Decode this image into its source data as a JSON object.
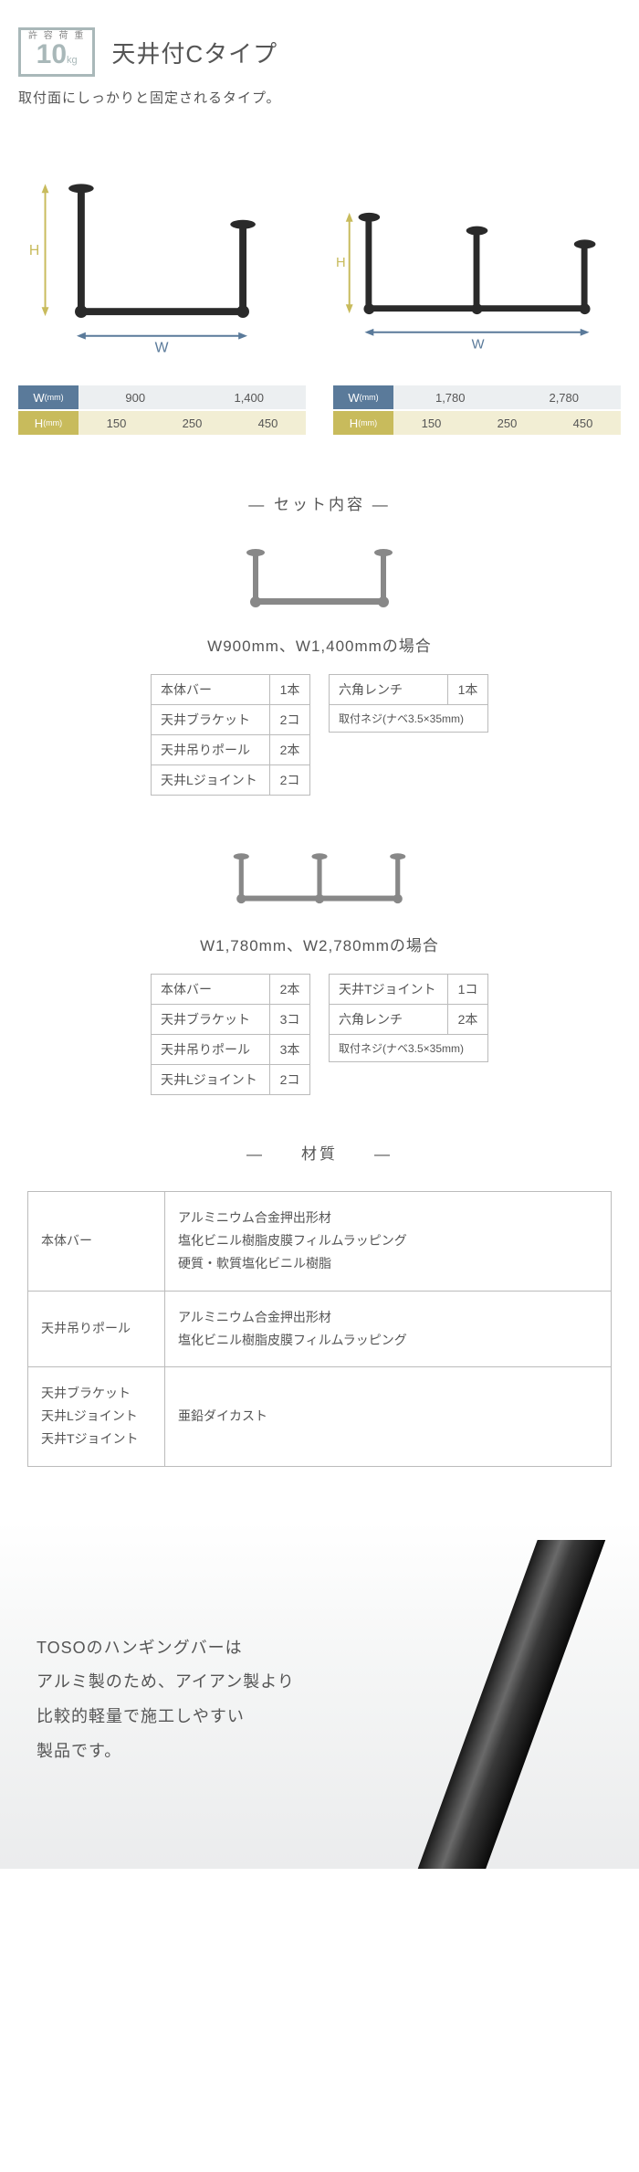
{
  "header": {
    "weight_label": "許 容 荷 重",
    "weight_num": "10",
    "weight_unit": "kg",
    "title": "天井付Cタイプ",
    "subtitle": "取付面にしっかりと固定されるタイプ。"
  },
  "colors": {
    "w_label_bg": "#5a7a9a",
    "h_label_bg": "#c8bb5c",
    "w_cell_bg": "#eceff1",
    "h_cell_bg": "#f2eed4",
    "border": "#bbbbbb",
    "text": "#555555",
    "badge_border": "#a9b8b9",
    "h_arrow": "#c8bb5c",
    "w_arrow": "#5a7a9a",
    "bar_color": "#2a2a2a"
  },
  "dim_tables": [
    {
      "rows": [
        {
          "label": "W",
          "unit": "(mm)",
          "type": "w",
          "cells": [
            "900",
            "1,400"
          ]
        },
        {
          "label": "H",
          "unit": "(mm)",
          "type": "h",
          "cells": [
            "150",
            "250",
            "450"
          ]
        }
      ]
    },
    {
      "rows": [
        {
          "label": "W",
          "unit": "(mm)",
          "type": "w",
          "cells": [
            "1,780",
            "2,780"
          ]
        },
        {
          "label": "H",
          "unit": "(mm)",
          "type": "h",
          "cells": [
            "150",
            "250",
            "450"
          ]
        }
      ]
    }
  ],
  "sets_heading": "― セット内容 ―",
  "sets": [
    {
      "subtitle": "W900mm、W1,400mmの場合",
      "diagram_type": 2,
      "tables": [
        [
          {
            "name": "本体バー",
            "qty": "1本"
          },
          {
            "name": "天井ブラケット",
            "qty": "2コ"
          },
          {
            "name": "天井吊りポール",
            "qty": "2本"
          },
          {
            "name": "天井Lジョイント",
            "qty": "2コ"
          }
        ],
        [
          {
            "name": "六角レンチ",
            "qty": "1本"
          },
          {
            "name": "取付ネジ(ナベ3.5×35mm)",
            "colspan": 2,
            "small": true
          }
        ]
      ]
    },
    {
      "subtitle": "W1,780mm、W2,780mmの場合",
      "diagram_type": 3,
      "tables": [
        [
          {
            "name": "本体バー",
            "qty": "2本"
          },
          {
            "name": "天井ブラケット",
            "qty": "3コ"
          },
          {
            "name": "天井吊りポール",
            "qty": "3本"
          },
          {
            "name": "天井Lジョイント",
            "qty": "2コ"
          }
        ],
        [
          {
            "name": "天井Tジョイント",
            "qty": "1コ"
          },
          {
            "name": "六角レンチ",
            "qty": "2本"
          },
          {
            "name": "取付ネジ(ナベ3.5×35mm)",
            "colspan": 2,
            "small": true
          }
        ]
      ]
    }
  ],
  "material_heading": "―　　材質　　―",
  "materials": [
    {
      "name": "本体バー",
      "desc": "アルミニウム合金押出形材\n塩化ビニル樹脂皮膜フィルムラッピング\n硬質・軟質塩化ビニル樹脂"
    },
    {
      "name": "天井吊りポール",
      "desc": "アルミニウム合金押出形材\n塩化ビニル樹脂皮膜フィルムラッピング"
    },
    {
      "name": "天井ブラケット\n天井Lジョイント\n天井Tジョイント",
      "desc": "亜鉛ダイカスト"
    }
  ],
  "footer": {
    "text": "TOSOのハンギングバーは\nアルミ製のため、アイアン製より\n比較的軽量で施工しやすい\n製品です。"
  }
}
